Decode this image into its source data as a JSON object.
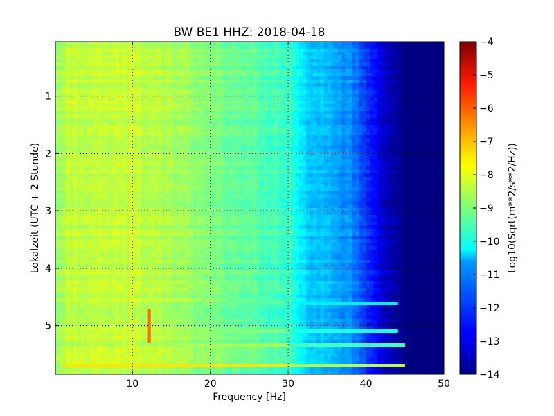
{
  "chart_data": {
    "type": "heatmap",
    "title": "BW BE1 HHZ: 2018-04-18",
    "xlabel": "Frequency [Hz]",
    "ylabel": "Lokalzeit (UTC + 2 Stunde)",
    "xlim": [
      0.1,
      50
    ],
    "ylim": [
      5.85,
      0.05
    ],
    "x_ticks": [
      10,
      20,
      30,
      40,
      50
    ],
    "y_ticks": [
      1,
      2,
      3,
      4,
      5
    ],
    "grid": true,
    "colormap": "jet",
    "colorbar": {
      "label": "Log10(Sqrt(m**2/s**2/Hz))",
      "range": [
        -14,
        -4
      ],
      "ticks": [
        -4,
        -5,
        -6,
        -7,
        -8,
        -9,
        -10,
        -11,
        -12,
        -13,
        -14
      ]
    },
    "frequency_profile": {
      "x": [
        0,
        2,
        5,
        10,
        15,
        20,
        25,
        30,
        32,
        35,
        38,
        40,
        42,
        44,
        45,
        50
      ],
      "values": [
        -8.8,
        -8.3,
        -8.4,
        -8.3,
        -8.6,
        -9.0,
        -9.3,
        -9.7,
        -10.6,
        -11.0,
        -11.4,
        -12.2,
        -13.2,
        -13.6,
        -14.0,
        -14.0
      ]
    },
    "features": [
      {
        "type": "band",
        "time": 5.7,
        "f_from": 1,
        "f_to": 45,
        "value": -7.5
      },
      {
        "type": "band",
        "time": 5.35,
        "f_from": 12,
        "f_to": 45,
        "value": -8.6
      },
      {
        "type": "band",
        "time": 5.08,
        "f_from": 12,
        "f_to": 44,
        "value": -9.0
      },
      {
        "type": "band",
        "time": 4.6,
        "f_from": 15,
        "f_to": 44,
        "value": -9.4
      },
      {
        "type": "line",
        "freq": 10,
        "t_from": 0.05,
        "t_to": 5.8,
        "value": -8.0
      },
      {
        "type": "line",
        "freq": 12,
        "t_from": 4.7,
        "t_to": 5.3,
        "value": -6.3
      }
    ]
  }
}
